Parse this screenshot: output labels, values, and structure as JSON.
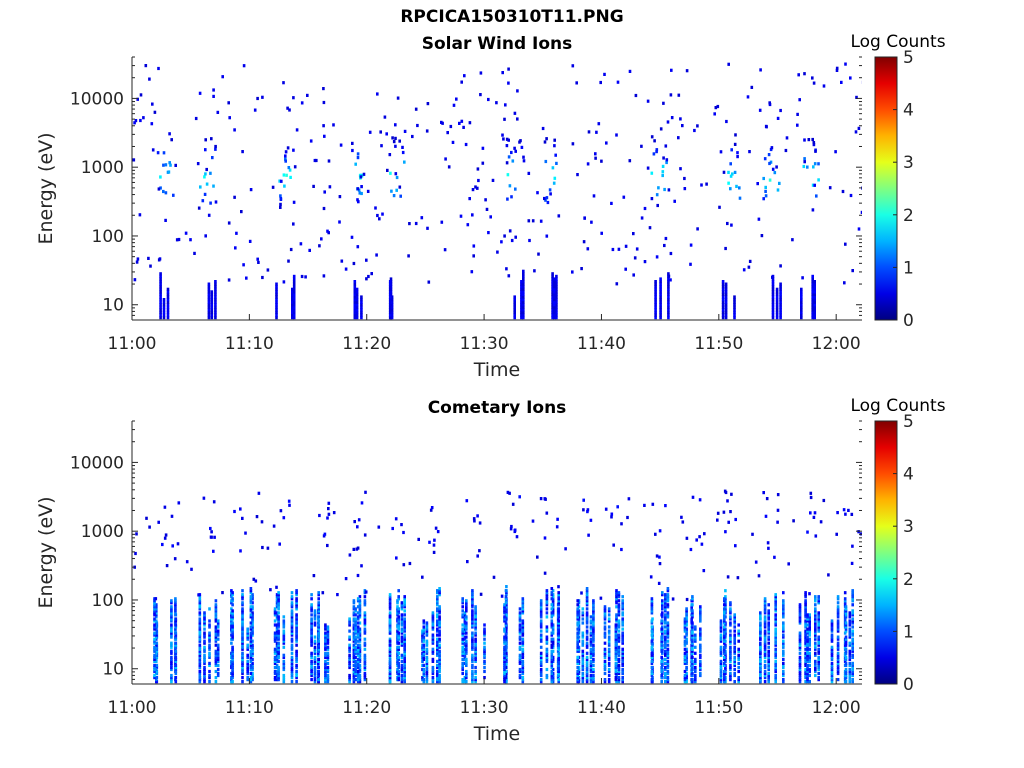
{
  "figure_title": "RPCICA150310T11.PNG",
  "colors": {
    "axis": "#262626",
    "background": "#ffffff",
    "colormap": "jet"
  },
  "chart_data": [
    {
      "type": "heatmap",
      "title": "Solar Wind Ions",
      "xlabel": "Time",
      "ylabel": "Energy (eV)",
      "x_ticks": [
        "11:00",
        "11:10",
        "11:20",
        "11:30",
        "11:40",
        "11:50",
        "12:00"
      ],
      "x_range": [
        "11:00",
        "12:02"
      ],
      "y_scale": "log",
      "y_ticks": [
        "10",
        "100",
        "1000",
        "10000"
      ],
      "ylim": [
        6,
        40000
      ],
      "colorbar": {
        "label": "Log Counts",
        "min": 0,
        "max": 5,
        "ticks": [
          "0",
          "1",
          "2",
          "3",
          "4",
          "5"
        ]
      },
      "bursts_minutes": [
        2.8,
        6.4,
        13.0,
        19.3,
        22.5,
        32.5,
        35.6,
        44.8,
        51.0,
        54.4,
        57.7
      ],
      "peak_log_counts": 2.3
    },
    {
      "type": "heatmap",
      "title": "Cometary Ions",
      "xlabel": "Time",
      "ylabel": "Energy (eV)",
      "x_ticks": [
        "11:00",
        "11:10",
        "11:20",
        "11:30",
        "11:40",
        "11:50",
        "12:00"
      ],
      "x_range": [
        "11:00",
        "12:02"
      ],
      "y_scale": "log",
      "y_ticks": [
        "10",
        "100",
        "1000",
        "10000"
      ],
      "ylim": [
        6,
        40000
      ],
      "colorbar": {
        "label": "Log Counts",
        "min": 0,
        "max": 5,
        "ticks": [
          "0",
          "1",
          "2",
          "3",
          "4",
          "5"
        ]
      },
      "bursts_minutes": [
        2.8,
        6.4,
        9.2,
        13.0,
        16.0,
        19.3,
        22.5,
        25.6,
        29.0,
        32.5,
        35.6,
        38.6,
        41.0,
        44.8,
        47.9,
        51.0,
        54.4,
        57.7,
        60.5
      ],
      "peak_log_counts": 1.9
    }
  ]
}
